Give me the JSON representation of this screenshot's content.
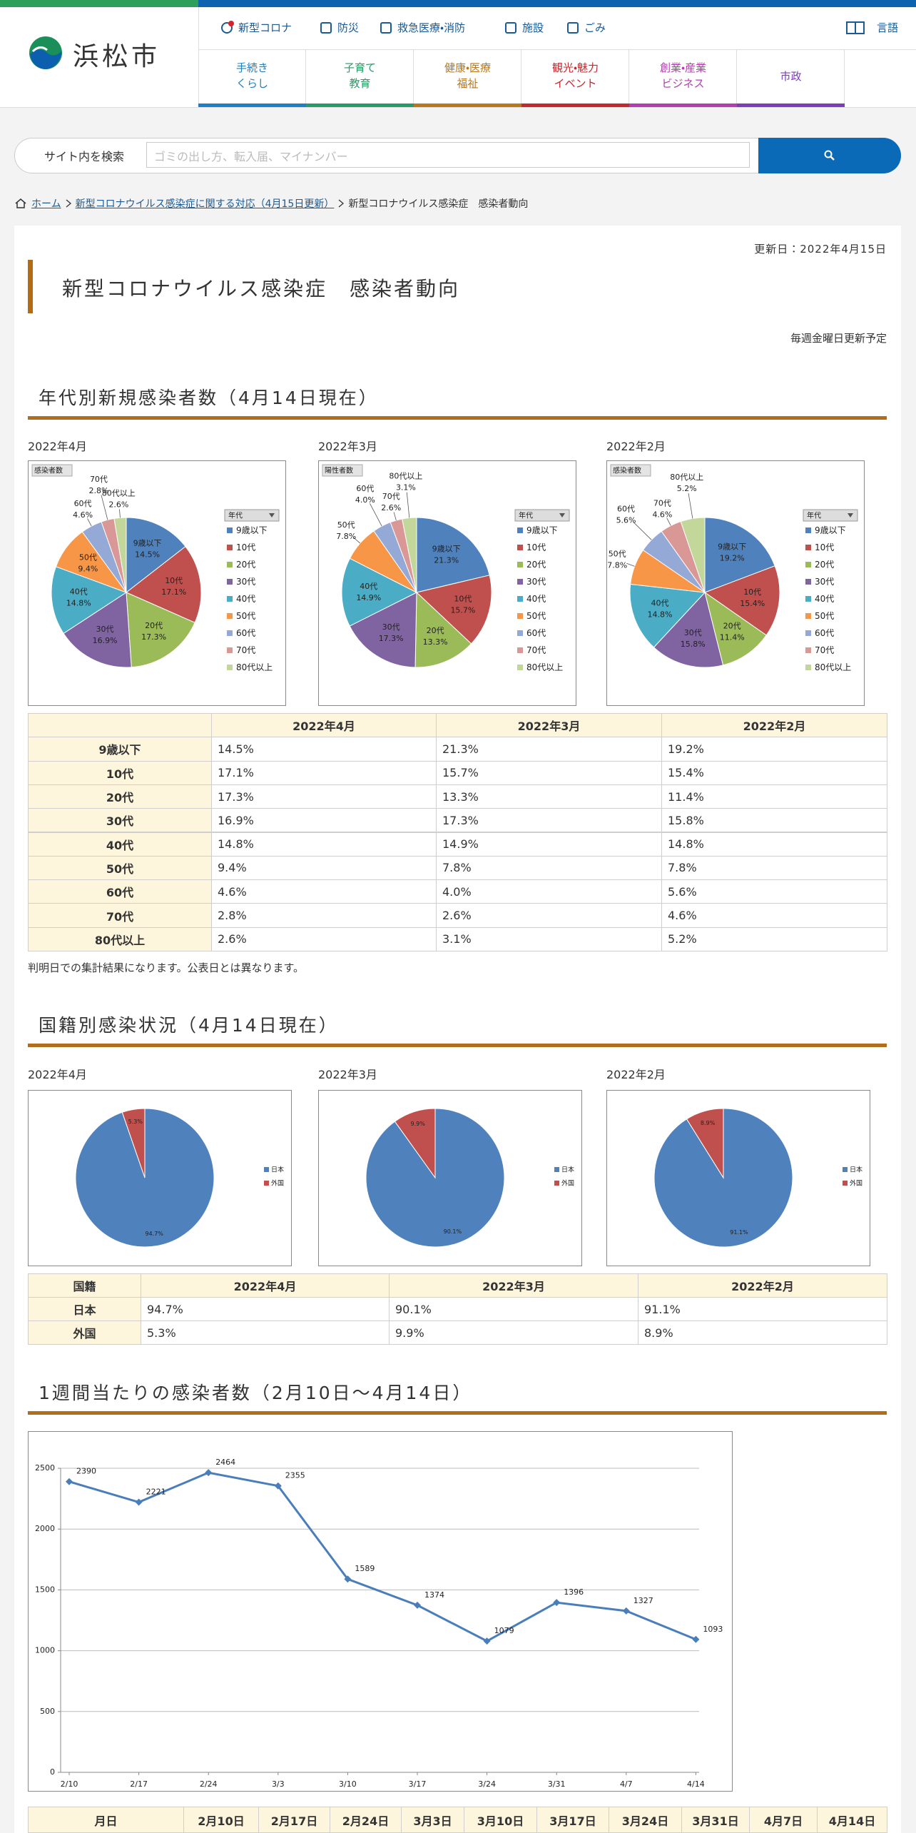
{
  "header": {
    "logo": "浜松市",
    "utility_nav": [
      "新型コロナ",
      "防災",
      "救急医療・消防",
      "施設",
      "ごみ"
    ],
    "language": "言語",
    "main_nav": [
      {
        "lines": [
          "手続き",
          "くらし"
        ],
        "color": "#1f7fc4"
      },
      {
        "lines": [
          "子育て",
          "教育"
        ],
        "color": "#2a9a66"
      },
      {
        "lines": [
          "健康・医療",
          "福祉"
        ],
        "color": "#b8781c"
      },
      {
        "lines": [
          "観光・魅力",
          "イベント"
        ],
        "color": "#c3282e"
      },
      {
        "lines": [
          "創業・産業",
          "ビジネス"
        ],
        "color": "#b23fb0"
      },
      {
        "lines": [
          "市政"
        ],
        "color": "#7a3fb8"
      }
    ]
  },
  "search": {
    "label": "サイト内を検索",
    "placeholder": "ゴミの出し方、転入届、マイナンバー"
  },
  "breadcrumb": [
    "ホーム",
    "新型コロナウイルス感染症に関する対応（4月15日更新）",
    "新型コロナウイルス感染症　感染者動向"
  ],
  "updated": "更新日：2022年4月15日",
  "title": "新型コロナウイルス感染症　感染者動向",
  "schedule": "毎週金曜日更新予定",
  "age_section": {
    "heading": "年代別新規感染者数（4月14日現在）",
    "charts": [
      {
        "type": "pie",
        "title": "2022年4月",
        "field_label": "感染者数",
        "legend_title": "年代",
        "categories": [
          "9歳以下",
          "10代",
          "20代",
          "30代",
          "40代",
          "50代",
          "60代",
          "70代",
          "80代以上"
        ],
        "colors": [
          "#4f81bd",
          "#c0504d",
          "#9bbb59",
          "#8064a2",
          "#4bacc6",
          "#f79646",
          "#95a9d6",
          "#d99795",
          "#c4d79b"
        ],
        "values": [
          14.5,
          17.1,
          17.3,
          16.9,
          14.8,
          9.4,
          4.6,
          2.8,
          2.6
        ],
        "value_labels": [
          "14.5%",
          "17.1%",
          "17.3%",
          "16.9%",
          "14.8%",
          "9.4%",
          "4.6%",
          "2.8%",
          "2.6%"
        ]
      },
      {
        "type": "pie",
        "title": "2022年3月",
        "field_label": "陽性者数",
        "legend_title": "年代",
        "categories": [
          "9歳以下",
          "10代",
          "20代",
          "30代",
          "40代",
          "50代",
          "60代",
          "70代",
          "80代以上"
        ],
        "colors": [
          "#4f81bd",
          "#c0504d",
          "#9bbb59",
          "#8064a2",
          "#4bacc6",
          "#f79646",
          "#95a9d6",
          "#d99795",
          "#c4d79b"
        ],
        "values": [
          21.3,
          15.7,
          13.3,
          17.3,
          14.9,
          7.8,
          4.0,
          2.6,
          3.1
        ],
        "value_labels": [
          "21.3%",
          "15.7%",
          "13.3%",
          "17.3%",
          "14.9%",
          "7.8%",
          "4.0%",
          "2.6%",
          "3.1%"
        ]
      },
      {
        "type": "pie",
        "title": "2022年2月",
        "field_label": "感染者数",
        "legend_title": "年代",
        "categories": [
          "9歳以下",
          "10代",
          "20代",
          "30代",
          "40代",
          "50代",
          "60代",
          "70代",
          "80代以上"
        ],
        "colors": [
          "#4f81bd",
          "#c0504d",
          "#9bbb59",
          "#8064a2",
          "#4bacc6",
          "#f79646",
          "#95a9d6",
          "#d99795",
          "#c4d79b"
        ],
        "values": [
          19.2,
          15.4,
          11.4,
          15.8,
          14.8,
          7.8,
          5.6,
          4.6,
          5.2
        ],
        "value_labels": [
          "19.2%",
          "15.4%",
          "11.4%",
          "15.8%",
          "14.8%",
          "7.8%",
          "5.6%",
          "4.6%",
          "5.2%"
        ]
      }
    ],
    "note": "判明日での集計結果になります。公表日とは異なります。"
  },
  "nationality_section": {
    "heading": "国籍別感染状況（4月14日現在）",
    "table_corner": "国籍",
    "charts": [
      {
        "type": "pie",
        "title": "2022年4月",
        "categories": [
          "日本",
          "外国"
        ],
        "colors": [
          "#4f81bd",
          "#c0504d"
        ],
        "values": [
          94.7,
          5.3
        ],
        "value_labels": [
          "94.7%",
          "5.3%"
        ]
      },
      {
        "type": "pie",
        "title": "2022年3月",
        "categories": [
          "日本",
          "外国"
        ],
        "colors": [
          "#4f81bd",
          "#c0504d"
        ],
        "values": [
          90.1,
          9.9
        ],
        "value_labels": [
          "90.1%",
          "9.9%"
        ]
      },
      {
        "type": "pie",
        "title": "2022年2月",
        "categories": [
          "日本",
          "外国"
        ],
        "colors": [
          "#4f81bd",
          "#c0504d"
        ],
        "values": [
          91.1,
          8.9
        ],
        "value_labels": [
          "91.1%",
          "8.9%"
        ]
      }
    ]
  },
  "weekly_section": {
    "heading": "1週間当たりの感染者数（2月10日～4月14日）",
    "chart": {
      "type": "line",
      "x": [
        "2/10",
        "2/17",
        "2/24",
        "3/3",
        "3/10",
        "3/17",
        "3/24",
        "3/31",
        "4/7",
        "4/14"
      ],
      "values": [
        2390,
        2221,
        2464,
        2355,
        1589,
        1374,
        1079,
        1396,
        1327,
        1093
      ],
      "color": "#4a7ebb",
      "ylim": [
        0,
        2500
      ],
      "yticks": [
        0,
        500,
        1000,
        1500,
        2000,
        2500
      ],
      "grid": true
    },
    "table": {
      "header": [
        "月日",
        "2月10日",
        "2月17日",
        "2月24日",
        "3月3日",
        "3月10日",
        "3月17日",
        "3月24日",
        "3月31日",
        "4月7日",
        "4月14日"
      ]
    }
  }
}
